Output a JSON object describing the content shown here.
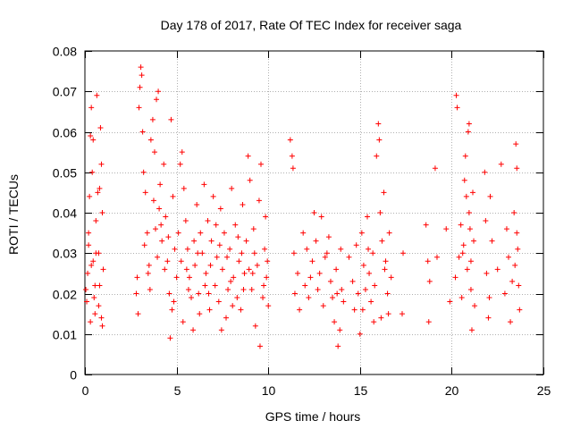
{
  "chart_data": {
    "type": "scatter",
    "title": "Day 178 of 2017, Rate Of TEC Index for receiver saga",
    "xlabel": "GPS time / hours",
    "ylabel": "ROTI / TECUs",
    "xlim": [
      0,
      25
    ],
    "ylim": [
      0,
      0.08
    ],
    "xticks": [
      0,
      5,
      10,
      15,
      20,
      25
    ],
    "xtick_labels": [
      "0",
      "5",
      "10",
      "15",
      "20",
      "25"
    ],
    "yticks": [
      0,
      0.01,
      0.02,
      0.03,
      0.04,
      0.05,
      0.06,
      0.07,
      0.08
    ],
    "ytick_labels": [
      "0",
      "0.01",
      "0.02",
      "0.03",
      "0.04",
      "0.05",
      "0.06",
      "0.07",
      "0.08"
    ],
    "grid": true,
    "marker": "+",
    "color": "#ff0000",
    "series": [
      {
        "points": [
          [
            0.05,
            0.021
          ],
          [
            0.1,
            0.018
          ],
          [
            0.15,
            0.025
          ],
          [
            0.2,
            0.032
          ],
          [
            0.25,
            0.044
          ],
          [
            0.3,
            0.059
          ],
          [
            0.35,
            0.066
          ],
          [
            0.4,
            0.05
          ],
          [
            0.45,
            0.028
          ],
          [
            0.5,
            0.019
          ],
          [
            0.55,
            0.015
          ],
          [
            0.6,
            0.038
          ],
          [
            0.65,
            0.069
          ],
          [
            0.7,
            0.045
          ],
          [
            0.75,
            0.03
          ],
          [
            0.8,
            0.022
          ],
          [
            0.85,
            0.061
          ],
          [
            0.9,
            0.052
          ],
          [
            0.95,
            0.04
          ],
          [
            1.0,
            0.026
          ],
          [
            0.2,
            0.035
          ],
          [
            0.35,
            0.027
          ],
          [
            0.55,
            0.022
          ],
          [
            0.75,
            0.017
          ],
          [
            0.9,
            0.014
          ],
          [
            0.95,
            0.012
          ],
          [
            0.3,
            0.013
          ],
          [
            0.6,
            0.03
          ],
          [
            0.8,
            0.046
          ],
          [
            0.45,
            0.058
          ],
          [
            2.8,
            0.02
          ],
          [
            2.85,
            0.024
          ],
          [
            2.9,
            0.015
          ],
          [
            2.95,
            0.066
          ],
          [
            3.0,
            0.071
          ],
          [
            3.05,
            0.076
          ],
          [
            3.1,
            0.074
          ],
          [
            3.15,
            0.06
          ],
          [
            3.2,
            0.05
          ],
          [
            3.3,
            0.045
          ],
          [
            3.4,
            0.035
          ],
          [
            3.5,
            0.027
          ],
          [
            3.6,
            0.058
          ],
          [
            3.7,
            0.063
          ],
          [
            3.8,
            0.055
          ],
          [
            3.9,
            0.068
          ],
          [
            4.0,
            0.07
          ],
          [
            4.05,
            0.041
          ],
          [
            4.1,
            0.047
          ],
          [
            4.2,
            0.033
          ],
          [
            4.3,
            0.052
          ],
          [
            4.4,
            0.039
          ],
          [
            4.5,
            0.028
          ],
          [
            4.6,
            0.02
          ],
          [
            4.7,
            0.063
          ],
          [
            4.75,
            0.016
          ],
          [
            4.8,
            0.044
          ],
          [
            4.9,
            0.031
          ],
          [
            5.0,
            0.024
          ],
          [
            3.25,
            0.032
          ],
          [
            3.45,
            0.025
          ],
          [
            3.55,
            0.021
          ],
          [
            3.75,
            0.043
          ],
          [
            3.85,
            0.036
          ],
          [
            3.95,
            0.029
          ],
          [
            4.15,
            0.037
          ],
          [
            4.35,
            0.026
          ],
          [
            4.55,
            0.034
          ],
          [
            4.65,
            0.009
          ],
          [
            4.85,
            0.018
          ],
          [
            5.1,
            0.035
          ],
          [
            5.2,
            0.052
          ],
          [
            5.25,
            0.028
          ],
          [
            5.3,
            0.055
          ],
          [
            5.4,
            0.046
          ],
          [
            5.5,
            0.038
          ],
          [
            5.6,
            0.031
          ],
          [
            5.7,
            0.024
          ],
          [
            5.8,
            0.019
          ],
          [
            5.9,
            0.011
          ],
          [
            6.0,
            0.027
          ],
          [
            6.1,
            0.042
          ],
          [
            6.2,
            0.02
          ],
          [
            6.3,
            0.035
          ],
          [
            6.4,
            0.03
          ],
          [
            6.5,
            0.047
          ],
          [
            6.6,
            0.025
          ],
          [
            6.7,
            0.038
          ],
          [
            6.8,
            0.016
          ],
          [
            6.9,
            0.033
          ],
          [
            7.0,
            0.044
          ],
          [
            7.1,
            0.022
          ],
          [
            7.2,
            0.029
          ],
          [
            7.3,
            0.018
          ],
          [
            7.4,
            0.041
          ],
          [
            7.5,
            0.026
          ],
          [
            7.6,
            0.035
          ],
          [
            7.7,
            0.014
          ],
          [
            7.8,
            0.021
          ],
          [
            7.9,
            0.031
          ],
          [
            8.0,
            0.046
          ],
          [
            8.1,
            0.024
          ],
          [
            8.2,
            0.037
          ],
          [
            8.3,
            0.019
          ],
          [
            8.4,
            0.028
          ],
          [
            8.5,
            0.016
          ],
          [
            8.6,
            0.042
          ],
          [
            8.7,
            0.025
          ],
          [
            8.8,
            0.033
          ],
          [
            8.9,
            0.054
          ],
          [
            9.0,
            0.048
          ],
          [
            9.1,
            0.021
          ],
          [
            9.2,
            0.036
          ],
          [
            9.3,
            0.012
          ],
          [
            9.4,
            0.027
          ],
          [
            9.5,
            0.043
          ],
          [
            9.6,
            0.052
          ],
          [
            9.7,
            0.019
          ],
          [
            9.8,
            0.031
          ],
          [
            9.9,
            0.024
          ],
          [
            10.0,
            0.017
          ],
          [
            5.35,
            0.013
          ],
          [
            5.65,
            0.021
          ],
          [
            5.95,
            0.033
          ],
          [
            6.25,
            0.015
          ],
          [
            6.55,
            0.022
          ],
          [
            6.85,
            0.027
          ],
          [
            7.15,
            0.037
          ],
          [
            7.45,
            0.011
          ],
          [
            7.75,
            0.029
          ],
          [
            8.05,
            0.017
          ],
          [
            8.35,
            0.034
          ],
          [
            8.65,
            0.021
          ],
          [
            8.95,
            0.026
          ],
          [
            9.25,
            0.03
          ],
          [
            9.55,
            0.007
          ],
          [
            9.85,
            0.039
          ],
          [
            5.55,
            0.026
          ],
          [
            6.15,
            0.03
          ],
          [
            6.75,
            0.02
          ],
          [
            7.35,
            0.032
          ],
          [
            7.95,
            0.023
          ],
          [
            8.55,
            0.03
          ],
          [
            9.15,
            0.025
          ],
          [
            9.75,
            0.022
          ],
          [
            9.95,
            0.028
          ],
          [
            11.2,
            0.058
          ],
          [
            11.3,
            0.054
          ],
          [
            11.35,
            0.051
          ],
          [
            11.4,
            0.03
          ],
          [
            11.45,
            0.02
          ],
          [
            11.6,
            0.025
          ],
          [
            11.7,
            0.016
          ],
          [
            11.9,
            0.035
          ],
          [
            12.0,
            0.022
          ],
          [
            12.2,
            0.019
          ],
          [
            12.4,
            0.028
          ],
          [
            12.5,
            0.04
          ],
          [
            12.6,
            0.033
          ],
          [
            12.8,
            0.025
          ],
          [
            12.9,
            0.039
          ],
          [
            13.0,
            0.017
          ],
          [
            13.2,
            0.03
          ],
          [
            13.4,
            0.023
          ],
          [
            13.6,
            0.013
          ],
          [
            13.7,
            0.026
          ],
          [
            13.8,
            0.007
          ],
          [
            13.9,
            0.011
          ],
          [
            14.0,
            0.021
          ],
          [
            14.1,
            0.018
          ],
          [
            12.1,
            0.031
          ],
          [
            12.3,
            0.024
          ],
          [
            12.7,
            0.021
          ],
          [
            13.1,
            0.029
          ],
          [
            13.3,
            0.034
          ],
          [
            13.5,
            0.019
          ],
          [
            13.75,
            0.02
          ],
          [
            13.95,
            0.031
          ],
          [
            14.4,
            0.029
          ],
          [
            14.6,
            0.023
          ],
          [
            14.7,
            0.016
          ],
          [
            14.9,
            0.02
          ],
          [
            15.0,
            0.01
          ],
          [
            15.1,
            0.035
          ],
          [
            15.2,
            0.027
          ],
          [
            15.3,
            0.021
          ],
          [
            15.4,
            0.039
          ],
          [
            15.5,
            0.025
          ],
          [
            15.6,
            0.018
          ],
          [
            15.7,
            0.03
          ],
          [
            15.8,
            0.022
          ],
          [
            15.9,
            0.054
          ],
          [
            16.0,
            0.062
          ],
          [
            16.05,
            0.058
          ],
          [
            16.1,
            0.04
          ],
          [
            16.2,
            0.033
          ],
          [
            16.3,
            0.045
          ],
          [
            16.4,
            0.028
          ],
          [
            16.5,
            0.02
          ],
          [
            16.6,
            0.035
          ],
          [
            16.7,
            0.024
          ],
          [
            14.8,
            0.032
          ],
          [
            15.15,
            0.016
          ],
          [
            15.45,
            0.031
          ],
          [
            15.75,
            0.013
          ],
          [
            16.15,
            0.014
          ],
          [
            16.35,
            0.026
          ],
          [
            16.55,
            0.015
          ],
          [
            17.3,
            0.015
          ],
          [
            17.35,
            0.03
          ],
          [
            18.6,
            0.037
          ],
          [
            18.7,
            0.028
          ],
          [
            18.75,
            0.013
          ],
          [
            18.8,
            0.023
          ],
          [
            19.1,
            0.051
          ],
          [
            19.2,
            0.029
          ],
          [
            19.7,
            0.036
          ],
          [
            19.9,
            0.018
          ],
          [
            20.2,
            0.024
          ],
          [
            20.25,
            0.069
          ],
          [
            20.3,
            0.066
          ],
          [
            20.4,
            0.029
          ],
          [
            20.5,
            0.037
          ],
          [
            20.55,
            0.019
          ],
          [
            20.6,
            0.03
          ],
          [
            20.7,
            0.048
          ],
          [
            20.75,
            0.054
          ],
          [
            20.8,
            0.044
          ],
          [
            20.85,
            0.026
          ],
          [
            20.9,
            0.06
          ],
          [
            20.95,
            0.062
          ],
          [
            21.0,
            0.036
          ],
          [
            21.05,
            0.021
          ],
          [
            21.1,
            0.011
          ],
          [
            21.15,
            0.045
          ],
          [
            21.2,
            0.033
          ],
          [
            21.25,
            0.017
          ],
          [
            21.8,
            0.05
          ],
          [
            21.85,
            0.038
          ],
          [
            21.9,
            0.025
          ],
          [
            22.0,
            0.014
          ],
          [
            22.1,
            0.044
          ],
          [
            22.2,
            0.033
          ],
          [
            22.5,
            0.026
          ],
          [
            22.7,
            0.052
          ],
          [
            22.9,
            0.02
          ],
          [
            23.0,
            0.036
          ],
          [
            23.1,
            0.029
          ],
          [
            23.2,
            0.013
          ],
          [
            23.3,
            0.023
          ],
          [
            23.4,
            0.04
          ],
          [
            23.5,
            0.057
          ],
          [
            23.55,
            0.051
          ],
          [
            23.6,
            0.031
          ],
          [
            23.65,
            0.022
          ],
          [
            23.7,
            0.016
          ],
          [
            20.65,
            0.032
          ],
          [
            20.95,
            0.04
          ],
          [
            21.05,
            0.028
          ],
          [
            22.05,
            0.019
          ],
          [
            23.45,
            0.027
          ],
          [
            23.55,
            0.035
          ]
        ]
      }
    ]
  }
}
